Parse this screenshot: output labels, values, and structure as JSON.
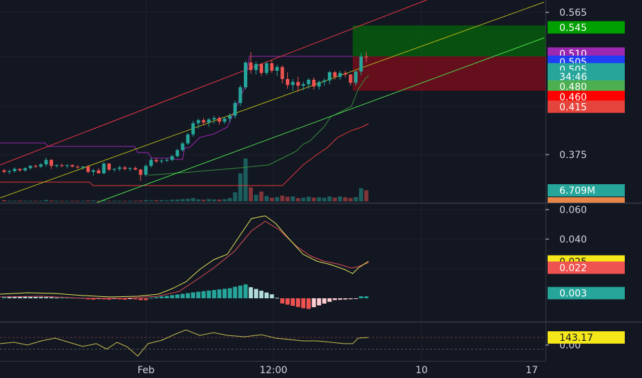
{
  "colors": {
    "background": "#131722",
    "grid": "#1e222d",
    "axis_text": "#d1d4dc",
    "separator": "#363a45",
    "up": "#26a69a",
    "down": "#ef5350",
    "channel_red": "#f23645",
    "channel_yellow": "#b5b518",
    "channel_green": "#4ee04e",
    "stair_purple": "#9c27b0",
    "stair_red": "#e53935",
    "stair_green": "#388e3c",
    "macd_line": "#e6e65a",
    "signal_line": "#e04e5a",
    "cci_line": "#c8c050",
    "profit_zone": "rgba(0,128,0,0.55)",
    "loss_zone": "rgba(150,12,22,0.62)"
  },
  "chart_data": [
    {
      "type": "candlestick",
      "panel": "price",
      "y_ticks": [
        "0.565",
        "0.375"
      ],
      "x_ticks": [
        "Feb",
        "12:00",
        "10",
        "17"
      ],
      "price_tags": [
        {
          "label": "0.545",
          "value": 0.545,
          "color": "#00a000",
          "text_color": "#ffffff"
        },
        {
          "label": "0.510",
          "value": 0.51,
          "color": "#9c27b0",
          "text_color": "#ffffff"
        },
        {
          "label": "0.505",
          "value": 0.499,
          "color": "#1f3df7",
          "text_color": "#ffffff"
        },
        {
          "label": "0.505",
          "value": 0.489,
          "color": "#26a69a",
          "text_color": "#ffffff"
        },
        {
          "label": "34:46",
          "value": 0.479,
          "color": "#26a69a",
          "text_color": "#ffffff"
        },
        {
          "label": "0.480",
          "value": 0.466,
          "color": "#4caf50",
          "text_color": "#ffffff"
        },
        {
          "label": "0.460",
          "value": 0.452,
          "color": "#ff0000",
          "text_color": "#ffffff"
        },
        {
          "label": "0.415",
          "value": 0.439,
          "color": "#e5443c",
          "text_color": "#ffffff"
        }
      ],
      "candles": [
        [
          0.354,
          0.356,
          0.35,
          0.352
        ],
        [
          0.352,
          0.355,
          0.349,
          0.353
        ],
        [
          0.353,
          0.358,
          0.351,
          0.356
        ],
        [
          0.356,
          0.357,
          0.352,
          0.354
        ],
        [
          0.354,
          0.358,
          0.352,
          0.357
        ],
        [
          0.357,
          0.361,
          0.355,
          0.36
        ],
        [
          0.36,
          0.362,
          0.357,
          0.359
        ],
        [
          0.359,
          0.364,
          0.357,
          0.362
        ],
        [
          0.362,
          0.371,
          0.359,
          0.368
        ],
        [
          0.368,
          0.369,
          0.356,
          0.36
        ],
        [
          0.36,
          0.362,
          0.358,
          0.361
        ],
        [
          0.361,
          0.363,
          0.358,
          0.36
        ],
        [
          0.36,
          0.362,
          0.357,
          0.361
        ],
        [
          0.361,
          0.362,
          0.358,
          0.359
        ],
        [
          0.359,
          0.361,
          0.356,
          0.358
        ],
        [
          0.358,
          0.36,
          0.355,
          0.359
        ],
        [
          0.359,
          0.361,
          0.35,
          0.352
        ],
        [
          0.352,
          0.356,
          0.347,
          0.354
        ],
        [
          0.354,
          0.357,
          0.35,
          0.35
        ],
        [
          0.35,
          0.365,
          0.349,
          0.363
        ],
        [
          0.363,
          0.364,
          0.353,
          0.355
        ],
        [
          0.355,
          0.357,
          0.352,
          0.356
        ],
        [
          0.356,
          0.36,
          0.353,
          0.358
        ],
        [
          0.358,
          0.36,
          0.354,
          0.356
        ],
        [
          0.356,
          0.358,
          0.353,
          0.357
        ],
        [
          0.357,
          0.359,
          0.354,
          0.355
        ],
        [
          0.355,
          0.356,
          0.34,
          0.348
        ],
        [
          0.348,
          0.362,
          0.346,
          0.36
        ],
        [
          0.36,
          0.371,
          0.358,
          0.368
        ],
        [
          0.368,
          0.37,
          0.364,
          0.366
        ],
        [
          0.366,
          0.369,
          0.363,
          0.367
        ],
        [
          0.367,
          0.37,
          0.365,
          0.368
        ],
        [
          0.368,
          0.375,
          0.366,
          0.373
        ],
        [
          0.373,
          0.383,
          0.371,
          0.381
        ],
        [
          0.381,
          0.392,
          0.379,
          0.39
        ],
        [
          0.39,
          0.404,
          0.388,
          0.402
        ],
        [
          0.402,
          0.42,
          0.399,
          0.417
        ],
        [
          0.417,
          0.423,
          0.41,
          0.421
        ],
        [
          0.421,
          0.424,
          0.414,
          0.418
        ],
        [
          0.418,
          0.424,
          0.412,
          0.422
        ],
        [
          0.422,
          0.427,
          0.416,
          0.424
        ],
        [
          0.424,
          0.426,
          0.415,
          0.419
        ],
        [
          0.419,
          0.425,
          0.416,
          0.423
        ],
        [
          0.423,
          0.43,
          0.418,
          0.427
        ],
        [
          0.427,
          0.447,
          0.423,
          0.444
        ],
        [
          0.444,
          0.468,
          0.44,
          0.465
        ],
        [
          0.465,
          0.5,
          0.462,
          0.498
        ],
        [
          0.498,
          0.512,
          0.483,
          0.488
        ],
        [
          0.488,
          0.499,
          0.482,
          0.496
        ],
        [
          0.496,
          0.497,
          0.48,
          0.484
        ],
        [
          0.484,
          0.499,
          0.481,
          0.497
        ],
        [
          0.497,
          0.501,
          0.484,
          0.487
        ],
        [
          0.487,
          0.495,
          0.48,
          0.492
        ],
        [
          0.492,
          0.494,
          0.47,
          0.476
        ],
        [
          0.476,
          0.485,
          0.463,
          0.468
        ],
        [
          0.468,
          0.476,
          0.46,
          0.472
        ],
        [
          0.472,
          0.479,
          0.459,
          0.467
        ],
        [
          0.467,
          0.472,
          0.461,
          0.469
        ],
        [
          0.469,
          0.477,
          0.463,
          0.475
        ],
        [
          0.475,
          0.478,
          0.462,
          0.466
        ],
        [
          0.466,
          0.474,
          0.462,
          0.472
        ],
        [
          0.472,
          0.477,
          0.467,
          0.474
        ],
        [
          0.474,
          0.487,
          0.469,
          0.485
        ],
        [
          0.485,
          0.487,
          0.475,
          0.479
        ],
        [
          0.479,
          0.487,
          0.475,
          0.484
        ],
        [
          0.484,
          0.487,
          0.478,
          0.482
        ],
        [
          0.482,
          0.483,
          0.467,
          0.471
        ],
        [
          0.471,
          0.487,
          0.467,
          0.486
        ],
        [
          0.486,
          0.511,
          0.481,
          0.506
        ],
        [
          0.506,
          0.512,
          0.498,
          0.505
        ]
      ],
      "volume": [
        0.8,
        0.3,
        0.2,
        0.5,
        0.3,
        0.3,
        0.4,
        0.3,
        0.9,
        0.6,
        0.2,
        0.3,
        0.2,
        0.2,
        0.2,
        0.3,
        0.6,
        0.6,
        0.4,
        0.7,
        0.3,
        0.2,
        0.3,
        0.2,
        0.3,
        0.3,
        0.6,
        0.8,
        0.6,
        0.7,
        0.8,
        0.6,
        1.0,
        1.1,
        1.4,
        1.6,
        2.0,
        1.2,
        1.0,
        1.4,
        1.2,
        1.1,
        1.3,
        2.0,
        5.5,
        17.0,
        26.0,
        8.5,
        4.0,
        6.0,
        3.2,
        2.2,
        2.6,
        3.5,
        2.8,
        3.0,
        2.0,
        2.2,
        2.8,
        2.3,
        2.5,
        2.2,
        3.0,
        2.3,
        3.0,
        2.5,
        2.0,
        2.6,
        8.0,
        6.7
      ]
    },
    {
      "type": "line+histogram",
      "panel": "macd",
      "y_ticks": [
        "0.060",
        "0.040"
      ],
      "price_tags": [
        {
          "label": "0.025",
          "value": 0.0249,
          "color": "#f5e71a",
          "text_color": "#131722"
        },
        {
          "label": "0.022",
          "value": 0.0207,
          "color": "#ef5350",
          "text_color": "#ffffff"
        },
        {
          "label": "0.003",
          "value": 0.0035,
          "color": "#26a69a",
          "text_color": "#ffffff"
        }
      ]
    },
    {
      "type": "line",
      "panel": "cci",
      "y_ticks": [
        "0.00"
      ],
      "price_tags": [
        {
          "label": "143.17",
          "value": 143.17,
          "color": "#f5e71a",
          "text_color": "#131722"
        }
      ]
    }
  ]
}
